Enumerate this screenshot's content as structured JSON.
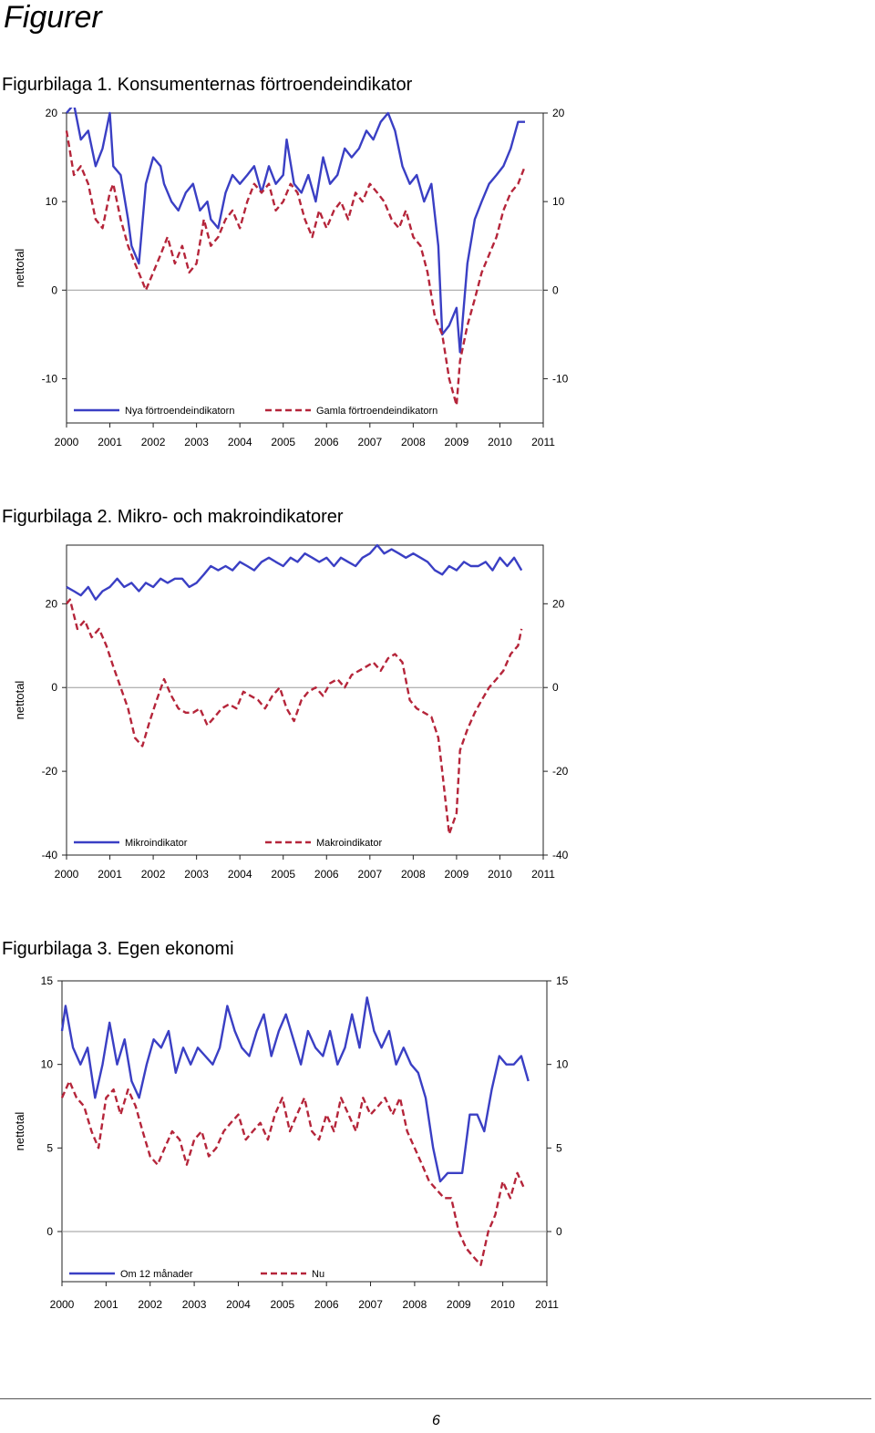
{
  "heading": "Figurer",
  "page_number": "6",
  "figures": [
    {
      "caption": "Figurbilaga 1. Konsumenternas förtroendeindikator"
    },
    {
      "caption": "Figurbilaga 2. Mikro- och makroindikatorer"
    },
    {
      "caption": "Figurbilaga 3. Egen ekonomi"
    }
  ],
  "chart_data": [
    {
      "type": "line",
      "ylabel": "nettotal",
      "ylim": [
        -15,
        20
      ],
      "yticks": [
        -10,
        0,
        10,
        20
      ],
      "xlim": [
        2000,
        2011
      ],
      "xticks": [
        "2000",
        "2001",
        "2002",
        "2003",
        "2004",
        "2005",
        "2006",
        "2007",
        "2008",
        "2009",
        "2010",
        "2011"
      ],
      "grid": "horizontal at 0",
      "legend": "bottom-left",
      "series": [
        {
          "name": "Nya förtroendeindikatorn",
          "style": "solid",
          "color": "#3a3fc4",
          "x": [
            2000.0,
            2000.17,
            2000.33,
            2000.5,
            2000.67,
            2000.83,
            2001.0,
            2001.08,
            2001.25,
            2001.42,
            2001.5,
            2001.67,
            2001.83,
            2002.0,
            2002.17,
            2002.25,
            2002.42,
            2002.58,
            2002.75,
            2002.92,
            2003.08,
            2003.25,
            2003.33,
            2003.5,
            2003.67,
            2003.83,
            2004.0,
            2004.17,
            2004.33,
            2004.5,
            2004.67,
            2004.83,
            2005.0,
            2005.08,
            2005.25,
            2005.42,
            2005.58,
            2005.75,
            2005.92,
            2006.08,
            2006.25,
            2006.42,
            2006.58,
            2006.75,
            2006.92,
            2007.08,
            2007.25,
            2007.42,
            2007.58,
            2007.75,
            2007.92,
            2008.08,
            2008.25,
            2008.42,
            2008.58,
            2008.67,
            2008.83,
            2009.0,
            2009.08,
            2009.25,
            2009.42,
            2009.58,
            2009.75,
            2009.92,
            2010.08,
            2010.25,
            2010.42,
            2010.58
          ],
          "y": [
            20,
            21,
            17,
            18,
            14,
            16,
            20,
            14,
            13,
            8,
            5,
            3,
            12,
            15,
            14,
            12,
            10,
            9,
            11,
            12,
            9,
            10,
            8,
            7,
            11,
            13,
            12,
            13,
            14,
            11,
            14,
            12,
            13,
            17,
            12,
            11,
            13,
            10,
            15,
            12,
            13,
            16,
            15,
            16,
            18,
            17,
            19,
            20,
            18,
            14,
            12,
            13,
            10,
            12,
            5,
            -5,
            -4,
            -2,
            -7,
            3,
            8,
            10,
            12,
            13,
            14,
            16,
            19,
            19
          ]
        },
        {
          "name": "Gamla förtroendeindikatorn",
          "style": "dashed",
          "color": "#b5253a",
          "x": [
            2000.0,
            2000.17,
            2000.33,
            2000.5,
            2000.67,
            2000.83,
            2001.0,
            2001.08,
            2001.25,
            2001.42,
            2001.58,
            2001.75,
            2001.83,
            2002.0,
            2002.17,
            2002.33,
            2002.5,
            2002.67,
            2002.83,
            2003.0,
            2003.17,
            2003.33,
            2003.5,
            2003.67,
            2003.83,
            2004.0,
            2004.17,
            2004.33,
            2004.5,
            2004.67,
            2004.83,
            2005.0,
            2005.17,
            2005.33,
            2005.5,
            2005.67,
            2005.83,
            2006.0,
            2006.17,
            2006.33,
            2006.5,
            2006.67,
            2006.83,
            2007.0,
            2007.17,
            2007.33,
            2007.5,
            2007.67,
            2007.83,
            2008.0,
            2008.17,
            2008.33,
            2008.5,
            2008.67,
            2008.83,
            2009.0,
            2009.08,
            2009.25,
            2009.42,
            2009.58,
            2009.75,
            2009.92,
            2010.08,
            2010.25,
            2010.42,
            2010.58
          ],
          "y": [
            18,
            13,
            14,
            12,
            8,
            7,
            11,
            12,
            8,
            5,
            3,
            1,
            0,
            2,
            4,
            6,
            3,
            5,
            2,
            3,
            8,
            5,
            6,
            8,
            9,
            7,
            10,
            12,
            11,
            12,
            9,
            10,
            12,
            11,
            8,
            6,
            9,
            7,
            9,
            10,
            8,
            11,
            10,
            12,
            11,
            10,
            8,
            7,
            9,
            6,
            5,
            2,
            -3,
            -5,
            -10,
            -13,
            -8,
            -4,
            -1,
            2,
            4,
            6,
            9,
            11,
            12,
            14
          ]
        }
      ]
    },
    {
      "type": "line",
      "ylabel": "nettotal",
      "ylim": [
        -40,
        34
      ],
      "yticks": [
        -40,
        -20,
        0,
        20
      ],
      "xlim": [
        2000,
        2011
      ],
      "xticks": [
        "2000",
        "2001",
        "2002",
        "2003",
        "2004",
        "2005",
        "2006",
        "2007",
        "2008",
        "2009",
        "2010",
        "2011"
      ],
      "grid": "horizontal at 0",
      "legend": "bottom-left",
      "series": [
        {
          "name": "Mikroindikator",
          "style": "solid",
          "color": "#3a3fc4",
          "x": [
            2000.0,
            2000.17,
            2000.33,
            2000.5,
            2000.67,
            2000.83,
            2001.0,
            2001.17,
            2001.33,
            2001.5,
            2001.67,
            2001.83,
            2002.0,
            2002.17,
            2002.33,
            2002.5,
            2002.67,
            2002.83,
            2003.0,
            2003.17,
            2003.33,
            2003.5,
            2003.67,
            2003.83,
            2004.0,
            2004.17,
            2004.33,
            2004.5,
            2004.67,
            2004.83,
            2005.0,
            2005.17,
            2005.33,
            2005.5,
            2005.67,
            2005.83,
            2006.0,
            2006.17,
            2006.33,
            2006.5,
            2006.67,
            2006.83,
            2007.0,
            2007.17,
            2007.33,
            2007.5,
            2007.67,
            2007.83,
            2008.0,
            2008.17,
            2008.33,
            2008.5,
            2008.67,
            2008.83,
            2009.0,
            2009.17,
            2009.33,
            2009.5,
            2009.67,
            2009.83,
            2010.0,
            2010.17,
            2010.33,
            2010.5
          ],
          "y": [
            24,
            23,
            22,
            24,
            21,
            23,
            24,
            26,
            24,
            25,
            23,
            25,
            24,
            26,
            25,
            26,
            26,
            24,
            25,
            27,
            29,
            28,
            29,
            28,
            30,
            29,
            28,
            30,
            31,
            30,
            29,
            31,
            30,
            32,
            31,
            30,
            31,
            29,
            31,
            30,
            29,
            31,
            32,
            34,
            32,
            33,
            32,
            31,
            32,
            31,
            30,
            28,
            27,
            29,
            28,
            30,
            29,
            29,
            30,
            28,
            31,
            29,
            31,
            28
          ]
        },
        {
          "name": "Makroindikator",
          "style": "dashed",
          "color": "#b5253a",
          "x": [
            2000.0,
            2000.08,
            2000.25,
            2000.42,
            2000.58,
            2000.75,
            2000.92,
            2001.08,
            2001.25,
            2001.42,
            2001.58,
            2001.75,
            2001.92,
            2002.08,
            2002.25,
            2002.42,
            2002.58,
            2002.75,
            2002.92,
            2003.08,
            2003.25,
            2003.42,
            2003.58,
            2003.75,
            2003.92,
            2004.08,
            2004.25,
            2004.42,
            2004.58,
            2004.75,
            2004.92,
            2005.08,
            2005.25,
            2005.42,
            2005.58,
            2005.75,
            2005.92,
            2006.08,
            2006.25,
            2006.42,
            2006.58,
            2006.75,
            2006.92,
            2007.08,
            2007.25,
            2007.42,
            2007.58,
            2007.75,
            2007.92,
            2008.08,
            2008.25,
            2008.42,
            2008.58,
            2008.67,
            2008.83,
            2009.0,
            2009.08,
            2009.25,
            2009.42,
            2009.58,
            2009.75,
            2009.92,
            2010.08,
            2010.25,
            2010.42,
            2010.5
          ],
          "y": [
            20,
            21,
            14,
            16,
            12,
            14,
            10,
            5,
            0,
            -5,
            -12,
            -14,
            -8,
            -3,
            2,
            -2,
            -5,
            -6,
            -6,
            -5,
            -9,
            -7,
            -5,
            -4,
            -5,
            -1,
            -2,
            -3,
            -5,
            -2,
            0,
            -5,
            -8,
            -3,
            -1,
            0,
            -2,
            1,
            2,
            0,
            3,
            4,
            5,
            6,
            4,
            7,
            8,
            6,
            -3,
            -5,
            -6,
            -7,
            -12,
            -20,
            -35,
            -30,
            -15,
            -10,
            -6,
            -3,
            0,
            2,
            4,
            8,
            10,
            14
          ]
        }
      ]
    },
    {
      "type": "line",
      "ylabel": "nettotal",
      "ylim": [
        -3,
        15
      ],
      "yticks": [
        0,
        5,
        10,
        15
      ],
      "xlim": [
        2000,
        2011
      ],
      "xticks": [
        "2000",
        "2001",
        "2002",
        "2003",
        "2004",
        "2005",
        "2006",
        "2007",
        "2008",
        "2009",
        "2010",
        "2011"
      ],
      "grid": "horizontal at 0",
      "legend": "bottom-left",
      "series": [
        {
          "name": "Om 12 månader",
          "style": "solid",
          "color": "#3a3fc4",
          "x": [
            2000.0,
            2000.08,
            2000.25,
            2000.42,
            2000.58,
            2000.75,
            2000.92,
            2001.08,
            2001.25,
            2001.42,
            2001.58,
            2001.75,
            2001.92,
            2002.08,
            2002.25,
            2002.42,
            2002.58,
            2002.75,
            2002.92,
            2003.08,
            2003.25,
            2003.42,
            2003.58,
            2003.75,
            2003.92,
            2004.08,
            2004.25,
            2004.42,
            2004.58,
            2004.75,
            2004.92,
            2005.08,
            2005.25,
            2005.42,
            2005.58,
            2005.75,
            2005.92,
            2006.08,
            2006.25,
            2006.42,
            2006.58,
            2006.75,
            2006.92,
            2007.08,
            2007.25,
            2007.42,
            2007.58,
            2007.75,
            2007.92,
            2008.08,
            2008.25,
            2008.42,
            2008.58,
            2008.75,
            2008.92,
            2009.08,
            2009.25,
            2009.42,
            2009.58,
            2009.75,
            2009.92,
            2010.08,
            2010.25,
            2010.42,
            2010.58
          ],
          "y": [
            12,
            13.5,
            11,
            10,
            11,
            8,
            10,
            12.5,
            10,
            11.5,
            9,
            8,
            10,
            11.5,
            11,
            12,
            9.5,
            11,
            10,
            11,
            10.5,
            10,
            11,
            13.5,
            12,
            11,
            10.5,
            12,
            13,
            10.5,
            12,
            13,
            11.5,
            10,
            12,
            11,
            10.5,
            12,
            10,
            11,
            13,
            11,
            14,
            12,
            11,
            12,
            10,
            11,
            10,
            9.5,
            8,
            5,
            3,
            3.5,
            3.5,
            3.5,
            7,
            7,
            6,
            8.5,
            10.5,
            10,
            10,
            10.5,
            9
          ]
        },
        {
          "name": "Nu",
          "style": "dashed",
          "color": "#b5253a",
          "x": [
            2000.0,
            2000.17,
            2000.33,
            2000.5,
            2000.67,
            2000.83,
            2001.0,
            2001.17,
            2001.33,
            2001.5,
            2001.67,
            2001.83,
            2002.0,
            2002.17,
            2002.33,
            2002.5,
            2002.67,
            2002.83,
            2003.0,
            2003.17,
            2003.33,
            2003.5,
            2003.67,
            2003.83,
            2004.0,
            2004.17,
            2004.33,
            2004.5,
            2004.67,
            2004.83,
            2005.0,
            2005.17,
            2005.33,
            2005.5,
            2005.67,
            2005.83,
            2006.0,
            2006.17,
            2006.33,
            2006.5,
            2006.67,
            2006.83,
            2007.0,
            2007.17,
            2007.33,
            2007.5,
            2007.67,
            2007.83,
            2008.0,
            2008.17,
            2008.33,
            2008.5,
            2008.67,
            2008.83,
            2009.0,
            2009.17,
            2009.33,
            2009.5,
            2009.67,
            2009.83,
            2010.0,
            2010.17,
            2010.33,
            2010.5
          ],
          "y": [
            8,
            9,
            8,
            7.5,
            6,
            5,
            8,
            8.5,
            7,
            8.5,
            7.5,
            6,
            4.5,
            4,
            5,
            6,
            5.5,
            4,
            5.5,
            6,
            4.5,
            5,
            6,
            6.5,
            7,
            5.5,
            6,
            6.5,
            5.5,
            7,
            8,
            6,
            7,
            8,
            6,
            5.5,
            7,
            6,
            8,
            7,
            6,
            8,
            7,
            7.5,
            8,
            7,
            8,
            6,
            5,
            4,
            3,
            2.5,
            2,
            2,
            0,
            -1,
            -1.5,
            -2,
            0,
            1,
            3,
            2,
            3.5,
            2.5
          ]
        }
      ]
    }
  ]
}
